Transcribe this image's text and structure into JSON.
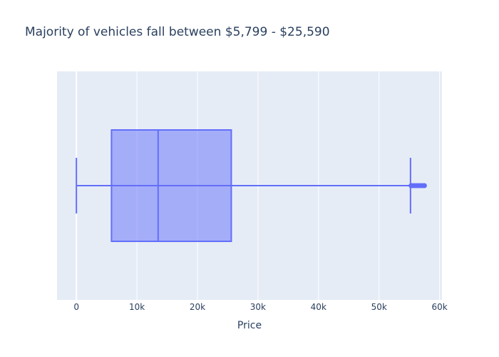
{
  "chart_data": {
    "type": "box",
    "title": "Majority of vehicles fall between $5,799 - $25,590",
    "xlabel": "Price",
    "ylabel": "",
    "orientation": "horizontal",
    "xlim": [
      -3200,
      60400
    ],
    "xticks": [
      0,
      10000,
      20000,
      30000,
      40000,
      50000,
      60000
    ],
    "xtick_labels": [
      "0",
      "10k",
      "20k",
      "30k",
      "40k",
      "50k",
      "60k"
    ],
    "grid": true,
    "legend": "none",
    "series": [
      {
        "whisker_low": 0,
        "q1": 5799,
        "median": 13500,
        "q3": 25590,
        "whisker_high": 55200,
        "outliers": [
          55300,
          55500,
          55800,
          56100,
          56400,
          56700,
          57000,
          57300,
          57500
        ]
      }
    ]
  },
  "colors": {
    "plot_background": "#e5ecf6",
    "grid": "#ffffff",
    "box_fill": "#636efa",
    "box_line": "#636efa",
    "text": "#2a3f5f"
  }
}
